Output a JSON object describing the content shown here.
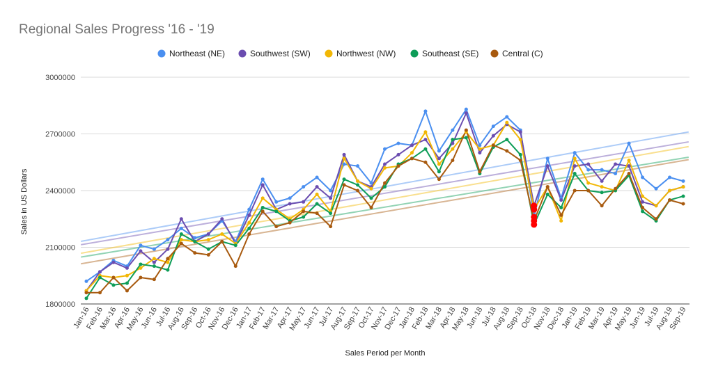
{
  "chart_data": {
    "type": "line",
    "title": "Regional Sales Progress '16 - '19",
    "xlabel": "Sales Period per Month",
    "ylabel": "Sales in US Dollars",
    "ylim": [
      1800000,
      3000000
    ],
    "yticks": [
      "3000000",
      "2700000",
      "2400000",
      "2100000",
      "1800000"
    ],
    "ytick_values": [
      3000000,
      2700000,
      2400000,
      2100000,
      1800000
    ],
    "grid": true,
    "legend_position": "top",
    "trendlines": true,
    "categories": [
      "Jan-16",
      "Feb-16",
      "Mar-16",
      "Apr-16",
      "May-16",
      "Jun-16",
      "Jul-16",
      "Aug-16",
      "Sep-16",
      "Oct-16",
      "Nov-16",
      "Dec-16",
      "Jan-17",
      "Feb-17",
      "Mar-17",
      "Apr-17",
      "May-17",
      "Jun-17",
      "Jul-17",
      "Aug-17",
      "Sep-17",
      "Oct-17",
      "Nov-17",
      "Dec-17",
      "Jan-18",
      "Feb-18",
      "Mar-18",
      "Apr-18",
      "May-18",
      "Jun-18",
      "Jul-18",
      "Aug-18",
      "Sep-18",
      "Oct-18",
      "Nov-18",
      "Dec-18",
      "Jan-19",
      "Feb-19",
      "Mar-19",
      "Apr-19",
      "May-19",
      "Jun-19",
      "Jul-19",
      "Aug-19",
      "Sep-19"
    ],
    "series": [
      {
        "name": "Northeast (NE)",
        "color": "#4a8ff0",
        "values": [
          1920000,
          1970000,
          2030000,
          2000000,
          2110000,
          2090000,
          2140000,
          2200000,
          2150000,
          2170000,
          2240000,
          2130000,
          2300000,
          2460000,
          2340000,
          2360000,
          2420000,
          2470000,
          2400000,
          2540000,
          2530000,
          2440000,
          2620000,
          2650000,
          2640000,
          2820000,
          2610000,
          2720000,
          2830000,
          2640000,
          2740000,
          2790000,
          2720000,
          2260000,
          2570000,
          2360000,
          2600000,
          2510000,
          2510000,
          2490000,
          2650000,
          2470000,
          2410000,
          2470000,
          2450000
        ]
      },
      {
        "name": "Southwest (SW)",
        "color": "#6b4db0",
        "values": [
          1870000,
          1970000,
          2020000,
          1990000,
          2080000,
          2020000,
          2090000,
          2250000,
          2130000,
          2170000,
          2250000,
          2120000,
          2270000,
          2430000,
          2300000,
          2330000,
          2340000,
          2420000,
          2360000,
          2590000,
          2450000,
          2420000,
          2540000,
          2590000,
          2640000,
          2670000,
          2570000,
          2650000,
          2810000,
          2600000,
          2690000,
          2750000,
          2710000,
          2320000,
          2530000,
          2350000,
          2530000,
          2540000,
          2450000,
          2540000,
          2530000,
          2340000,
          2320000,
          2400000,
          2420000
        ]
      },
      {
        "name": "Northwest (NW)",
        "color": "#f2b705",
        "values": [
          1870000,
          1950000,
          1940000,
          1950000,
          1990000,
          2040000,
          2020000,
          2140000,
          2130000,
          2140000,
          2170000,
          2120000,
          2230000,
          2360000,
          2300000,
          2250000,
          2300000,
          2380000,
          2290000,
          2570000,
          2450000,
          2410000,
          2520000,
          2530000,
          2600000,
          2710000,
          2540000,
          2620000,
          2710000,
          2620000,
          2640000,
          2760000,
          2670000,
          2300000,
          2420000,
          2240000,
          2570000,
          2440000,
          2420000,
          2400000,
          2560000,
          2370000,
          2320000,
          2400000,
          2420000
        ]
      },
      {
        "name": "Southeast (SE)",
        "color": "#0e9d58",
        "values": [
          1830000,
          1940000,
          1900000,
          1910000,
          2010000,
          2000000,
          1980000,
          2170000,
          2130000,
          2090000,
          2130000,
          2110000,
          2200000,
          2310000,
          2290000,
          2240000,
          2260000,
          2330000,
          2280000,
          2460000,
          2430000,
          2360000,
          2420000,
          2540000,
          2570000,
          2620000,
          2500000,
          2670000,
          2680000,
          2490000,
          2630000,
          2670000,
          2590000,
          2220000,
          2380000,
          2310000,
          2490000,
          2400000,
          2390000,
          2400000,
          2480000,
          2290000,
          2240000,
          2350000,
          2370000
        ]
      },
      {
        "name": "Central (C)",
        "color": "#a85a0f",
        "values": [
          1860000,
          1860000,
          1940000,
          1870000,
          1940000,
          1930000,
          2040000,
          2120000,
          2070000,
          2060000,
          2130000,
          2000000,
          2170000,
          2290000,
          2210000,
          2230000,
          2290000,
          2280000,
          2210000,
          2430000,
          2400000,
          2310000,
          2440000,
          2530000,
          2570000,
          2550000,
          2460000,
          2560000,
          2720000,
          2500000,
          2640000,
          2610000,
          2560000,
          2240000,
          2420000,
          2270000,
          2400000,
          2400000,
          2320000,
          2410000,
          2490000,
          2310000,
          2250000,
          2350000,
          2330000
        ]
      }
    ]
  }
}
